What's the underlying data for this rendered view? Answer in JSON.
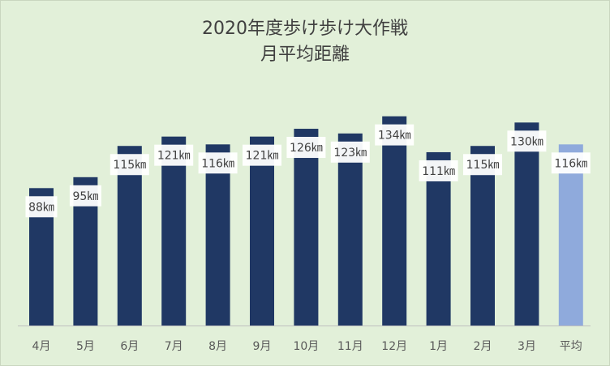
{
  "chart_data": {
    "type": "bar",
    "title_lines": [
      "2020年度歩け歩け大作戦",
      "月平均距離"
    ],
    "categories": [
      "4月",
      "5月",
      "6月",
      "7月",
      "8月",
      "9月",
      "10月",
      "11月",
      "12月",
      "1月",
      "2月",
      "3月",
      "平均"
    ],
    "values": [
      88,
      95,
      115,
      121,
      116,
      121,
      126,
      123,
      134,
      111,
      115,
      130,
      116
    ],
    "labels": [
      "88㎞",
      "95㎞",
      "115㎞",
      "121㎞",
      "116㎞",
      "121㎞",
      "126㎞",
      "123㎞",
      "134㎞",
      "111㎞",
      "115㎞",
      "130㎞",
      "116㎞"
    ],
    "unit": "㎞",
    "ylim": [
      0,
      140
    ],
    "grid": false,
    "colors": {
      "bar": "#203864",
      "average_bar": "#8faadc",
      "background": "#e2f0d9",
      "label_box": "#ffffff",
      "text": "#404040"
    }
  }
}
